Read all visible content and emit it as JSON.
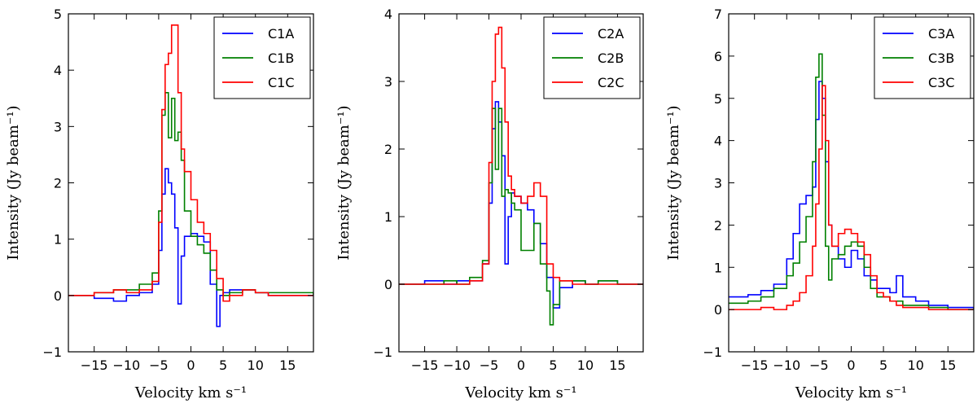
{
  "chart_data": [
    {
      "type": "line",
      "step": true,
      "title": "",
      "xlabel": "Velocity km s⁻¹",
      "ylabel": "Intensity (Jy beam⁻¹)",
      "xlim": [
        -19,
        19
      ],
      "ylim": [
        -1,
        5
      ],
      "xticks": [
        -15,
        -10,
        -5,
        0,
        5,
        10,
        15
      ],
      "xtick_labels": [
        "−15",
        "−10",
        "−5",
        "0",
        "5",
        "10",
        "15"
      ],
      "yticks": [
        -1,
        0,
        1,
        2,
        3,
        4,
        5
      ],
      "ytick_labels": [
        "−1",
        "0",
        "1",
        "2",
        "3",
        "4",
        "5"
      ],
      "legend_position": "top-right",
      "series": [
        {
          "name": "C1A",
          "color": "#0000ff",
          "x": [
            -19,
            -15,
            -12,
            -10,
            -8,
            -6,
            -5,
            -4.5,
            -4,
            -3.5,
            -3,
            -2.5,
            -2,
            -1.5,
            -1,
            0,
            1,
            2,
            3,
            4,
            4.5,
            5,
            6,
            8,
            10,
            12,
            15,
            19
          ],
          "y": [
            0.0,
            -0.05,
            -0.1,
            0.0,
            0.05,
            0.2,
            0.8,
            1.8,
            2.25,
            2.0,
            1.8,
            1.2,
            -0.15,
            0.7,
            1.05,
            1.1,
            1.05,
            0.95,
            0.2,
            -0.55,
            0.0,
            0.05,
            0.1,
            0.1,
            0.05,
            0.0,
            0.0,
            0.0
          ]
        },
        {
          "name": "C1B",
          "color": "#008000",
          "x": [
            -19,
            -15,
            -12,
            -10,
            -8,
            -6,
            -5,
            -4.5,
            -4,
            -3.5,
            -3,
            -2.5,
            -2,
            -1.5,
            -1,
            0,
            1,
            2,
            3,
            4,
            5,
            6,
            8,
            10,
            12,
            15,
            19
          ],
          "y": [
            0.0,
            0.05,
            0.1,
            0.1,
            0.2,
            0.4,
            1.5,
            3.2,
            3.6,
            2.8,
            3.5,
            2.75,
            2.9,
            2.4,
            1.5,
            1.05,
            0.9,
            0.75,
            0.45,
            0.1,
            0.0,
            0.05,
            0.1,
            0.05,
            0.05,
            0.05,
            0.0
          ]
        },
        {
          "name": "C1C",
          "color": "#ff0000",
          "x": [
            -19,
            -15,
            -12,
            -10,
            -8,
            -6,
            -5,
            -4.5,
            -4,
            -3.5,
            -3,
            -2.5,
            -2,
            -1.5,
            -1,
            0,
            1,
            2,
            3,
            4,
            5,
            6,
            8,
            10,
            12,
            15,
            19
          ],
          "y": [
            0.0,
            0.05,
            0.1,
            0.05,
            0.1,
            0.25,
            1.3,
            3.3,
            4.1,
            4.3,
            4.8,
            4.8,
            3.6,
            2.6,
            2.2,
            1.7,
            1.3,
            1.1,
            0.8,
            0.3,
            -0.1,
            0.0,
            0.1,
            0.05,
            0.0,
            0.0,
            0.0
          ]
        }
      ]
    },
    {
      "type": "line",
      "step": true,
      "title": "",
      "xlabel": "Velocity km s⁻¹",
      "ylabel": "Intensity (Jy beam⁻¹)",
      "xlim": [
        -19,
        19
      ],
      "ylim": [
        -1,
        4
      ],
      "xticks": [
        -15,
        -10,
        -5,
        0,
        5,
        10,
        15
      ],
      "xtick_labels": [
        "−15",
        "−10",
        "−5",
        "0",
        "5",
        "10",
        "15"
      ],
      "yticks": [
        -1,
        0,
        1,
        2,
        3,
        4
      ],
      "ytick_labels": [
        "−1",
        "0",
        "1",
        "2",
        "3",
        "4"
      ],
      "legend_position": "top-right",
      "series": [
        {
          "name": "C2A",
          "color": "#0000ff",
          "x": [
            -19,
            -15,
            -12,
            -10,
            -8,
            -6,
            -5,
            -4.5,
            -4,
            -3.5,
            -3,
            -2.5,
            -2,
            -1.5,
            -1,
            0,
            1,
            2,
            3,
            4,
            5,
            6,
            8,
            10,
            12,
            15,
            19
          ],
          "y": [
            0.0,
            0.05,
            0.0,
            0.05,
            0.05,
            0.3,
            1.2,
            2.3,
            2.7,
            2.4,
            1.9,
            0.3,
            1.0,
            1.35,
            1.3,
            1.2,
            1.1,
            0.9,
            0.6,
            0.1,
            -0.35,
            -0.05,
            0.05,
            0.0,
            0.05,
            0.0,
            0.0
          ]
        },
        {
          "name": "C2B",
          "color": "#008000",
          "x": [
            -19,
            -15,
            -12,
            -10,
            -8,
            -6,
            -5,
            -4.5,
            -4,
            -3.5,
            -3,
            -2.5,
            -2,
            -1.5,
            -1,
            0,
            1,
            2,
            3,
            4,
            4.5,
            5,
            6,
            8,
            10,
            12,
            15,
            19
          ],
          "y": [
            0.0,
            0.0,
            0.05,
            0.0,
            0.1,
            0.35,
            1.5,
            2.6,
            1.7,
            2.6,
            1.3,
            1.4,
            1.35,
            1.2,
            1.1,
            0.5,
            0.5,
            0.9,
            0.3,
            -0.1,
            -0.6,
            -0.3,
            0.05,
            0.05,
            0.0,
            0.05,
            0.0,
            0.0
          ]
        },
        {
          "name": "C2C",
          "color": "#ff0000",
          "x": [
            -19,
            -15,
            -12,
            -10,
            -8,
            -6,
            -5,
            -4.5,
            -4,
            -3.5,
            -3,
            -2.5,
            -2,
            -1.5,
            -1,
            0,
            1,
            2,
            3,
            4,
            5,
            6,
            8,
            10,
            12,
            15,
            19
          ],
          "y": [
            0.0,
            0.0,
            0.0,
            0.0,
            0.05,
            0.3,
            1.8,
            3.0,
            3.7,
            3.8,
            3.2,
            2.4,
            1.6,
            1.4,
            1.3,
            1.2,
            1.3,
            1.5,
            1.3,
            0.3,
            0.1,
            0.05,
            0.0,
            0.0,
            0.0,
            0.0,
            0.0
          ]
        }
      ]
    },
    {
      "type": "line",
      "step": true,
      "title": "",
      "xlabel": "Velocity km s⁻¹",
      "ylabel": "Intensity (Jy beam⁻¹)",
      "xlim": [
        -19,
        19
      ],
      "ylim": [
        -1,
        7
      ],
      "xticks": [
        -15,
        -10,
        -5,
        0,
        5,
        10,
        15
      ],
      "xtick_labels": [
        "−15",
        "−10",
        "−5",
        "0",
        "5",
        "10",
        "15"
      ],
      "yticks": [
        -1,
        0,
        1,
        2,
        3,
        4,
        5,
        6,
        7
      ],
      "ytick_labels": [
        "−1",
        "0",
        "1",
        "2",
        "3",
        "4",
        "5",
        "6",
        "7"
      ],
      "legend_position": "top-right",
      "series": [
        {
          "name": "C3A",
          "color": "#0000ff",
          "x": [
            -19,
            -16,
            -14,
            -12,
            -10,
            -9,
            -8,
            -7,
            -6,
            -5.5,
            -5,
            -4.5,
            -4,
            -3.5,
            -3,
            -2,
            -1,
            0,
            1,
            2,
            3,
            4,
            5,
            6,
            7,
            8,
            10,
            12,
            15,
            19
          ],
          "y": [
            0.3,
            0.35,
            0.45,
            0.6,
            1.2,
            1.8,
            2.5,
            2.7,
            2.9,
            4.5,
            5.4,
            5.0,
            3.5,
            2.0,
            1.5,
            1.2,
            1.0,
            1.4,
            1.2,
            0.8,
            0.7,
            0.5,
            0.5,
            0.4,
            0.8,
            0.3,
            0.2,
            0.1,
            0.05,
            0.0
          ]
        },
        {
          "name": "C3B",
          "color": "#008000",
          "x": [
            -19,
            -16,
            -14,
            -12,
            -10,
            -9,
            -8,
            -7,
            -6,
            -5.5,
            -5,
            -4.5,
            -4,
            -3.5,
            -3,
            -2,
            -1,
            0,
            1,
            2,
            3,
            4,
            5,
            6,
            7,
            8,
            10,
            12,
            15,
            19
          ],
          "y": [
            0.15,
            0.2,
            0.3,
            0.5,
            0.8,
            1.1,
            1.6,
            2.2,
            3.5,
            5.5,
            6.05,
            4.6,
            1.5,
            0.7,
            1.2,
            1.3,
            1.5,
            1.6,
            1.5,
            1.0,
            0.5,
            0.3,
            0.3,
            0.2,
            0.2,
            0.1,
            0.1,
            0.05,
            0.0,
            0.0
          ]
        },
        {
          "name": "C3C",
          "color": "#ff0000",
          "x": [
            -19,
            -16,
            -14,
            -12,
            -10,
            -9,
            -8,
            -7,
            -6,
            -5.5,
            -5,
            -4.5,
            -4,
            -3.5,
            -3,
            -2,
            -1,
            0,
            1,
            2,
            3,
            4,
            5,
            6,
            7,
            8,
            10,
            12,
            15,
            19
          ],
          "y": [
            0.0,
            0.0,
            0.05,
            0.0,
            0.1,
            0.2,
            0.4,
            0.8,
            1.5,
            2.5,
            3.8,
            5.3,
            4.0,
            2.0,
            1.5,
            1.8,
            1.9,
            1.8,
            1.6,
            1.3,
            0.8,
            0.4,
            0.3,
            0.2,
            0.1,
            0.05,
            0.05,
            0.0,
            0.0,
            0.0
          ]
        }
      ]
    }
  ]
}
